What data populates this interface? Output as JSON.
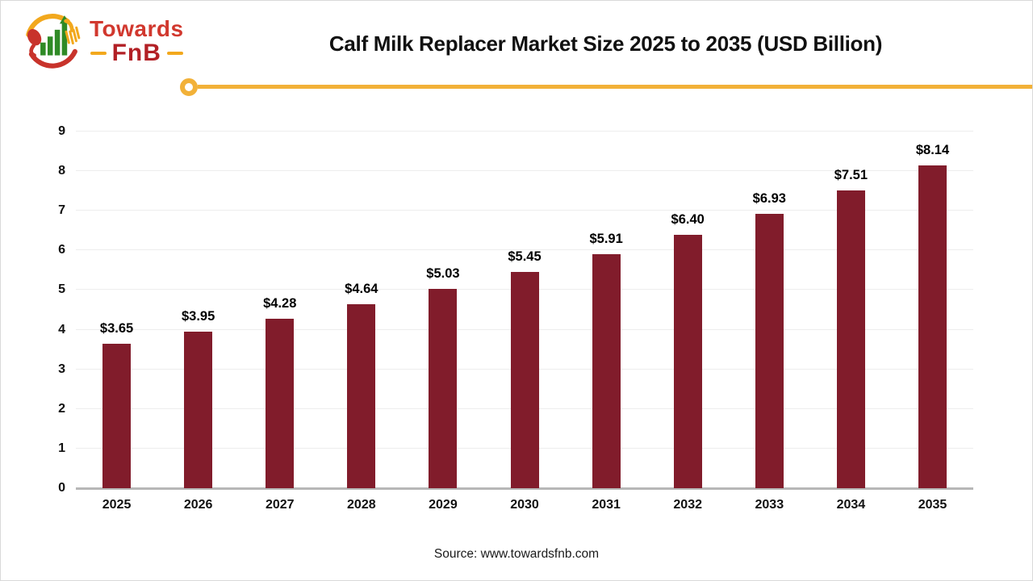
{
  "brand": {
    "name_top": "Towards",
    "name_bottom": "FnB",
    "colors": {
      "red": "#d1382e",
      "dark_red": "#b22025",
      "yellow": "#f2a81d",
      "green": "#2f8a26"
    }
  },
  "header": {
    "title": "Calf Milk Replacer Market Size 2025 to 2035 (USD Billion)",
    "divider_color": "#f2b138"
  },
  "chart_data": {
    "type": "bar",
    "title": "Calf Milk Replacer Market Size 2025 to 2035 (USD Billion)",
    "categories": [
      "2025",
      "2026",
      "2027",
      "2028",
      "2029",
      "2030",
      "2031",
      "2032",
      "2033",
      "2034",
      "2035"
    ],
    "values": [
      3.65,
      3.95,
      4.28,
      4.64,
      5.03,
      5.45,
      5.91,
      6.4,
      6.93,
      7.51,
      8.14
    ],
    "value_labels": [
      "$3.65",
      "$3.95",
      "$4.28",
      "$4.64",
      "$5.03",
      "$5.45",
      "$5.91",
      "$6.40",
      "$6.93",
      "$7.51",
      "$8.14"
    ],
    "xlabel": "",
    "ylabel": "",
    "ylim": [
      0,
      9
    ],
    "yticks": [
      0,
      1,
      2,
      3,
      4,
      5,
      6,
      7,
      8,
      9
    ],
    "grid": true,
    "legend": false,
    "bar_color": "#811c2b",
    "gridline_color": "#ededed",
    "axis_color": "#b7b7b7"
  },
  "footer": {
    "source": "Source: www.towardsfnb.com"
  }
}
